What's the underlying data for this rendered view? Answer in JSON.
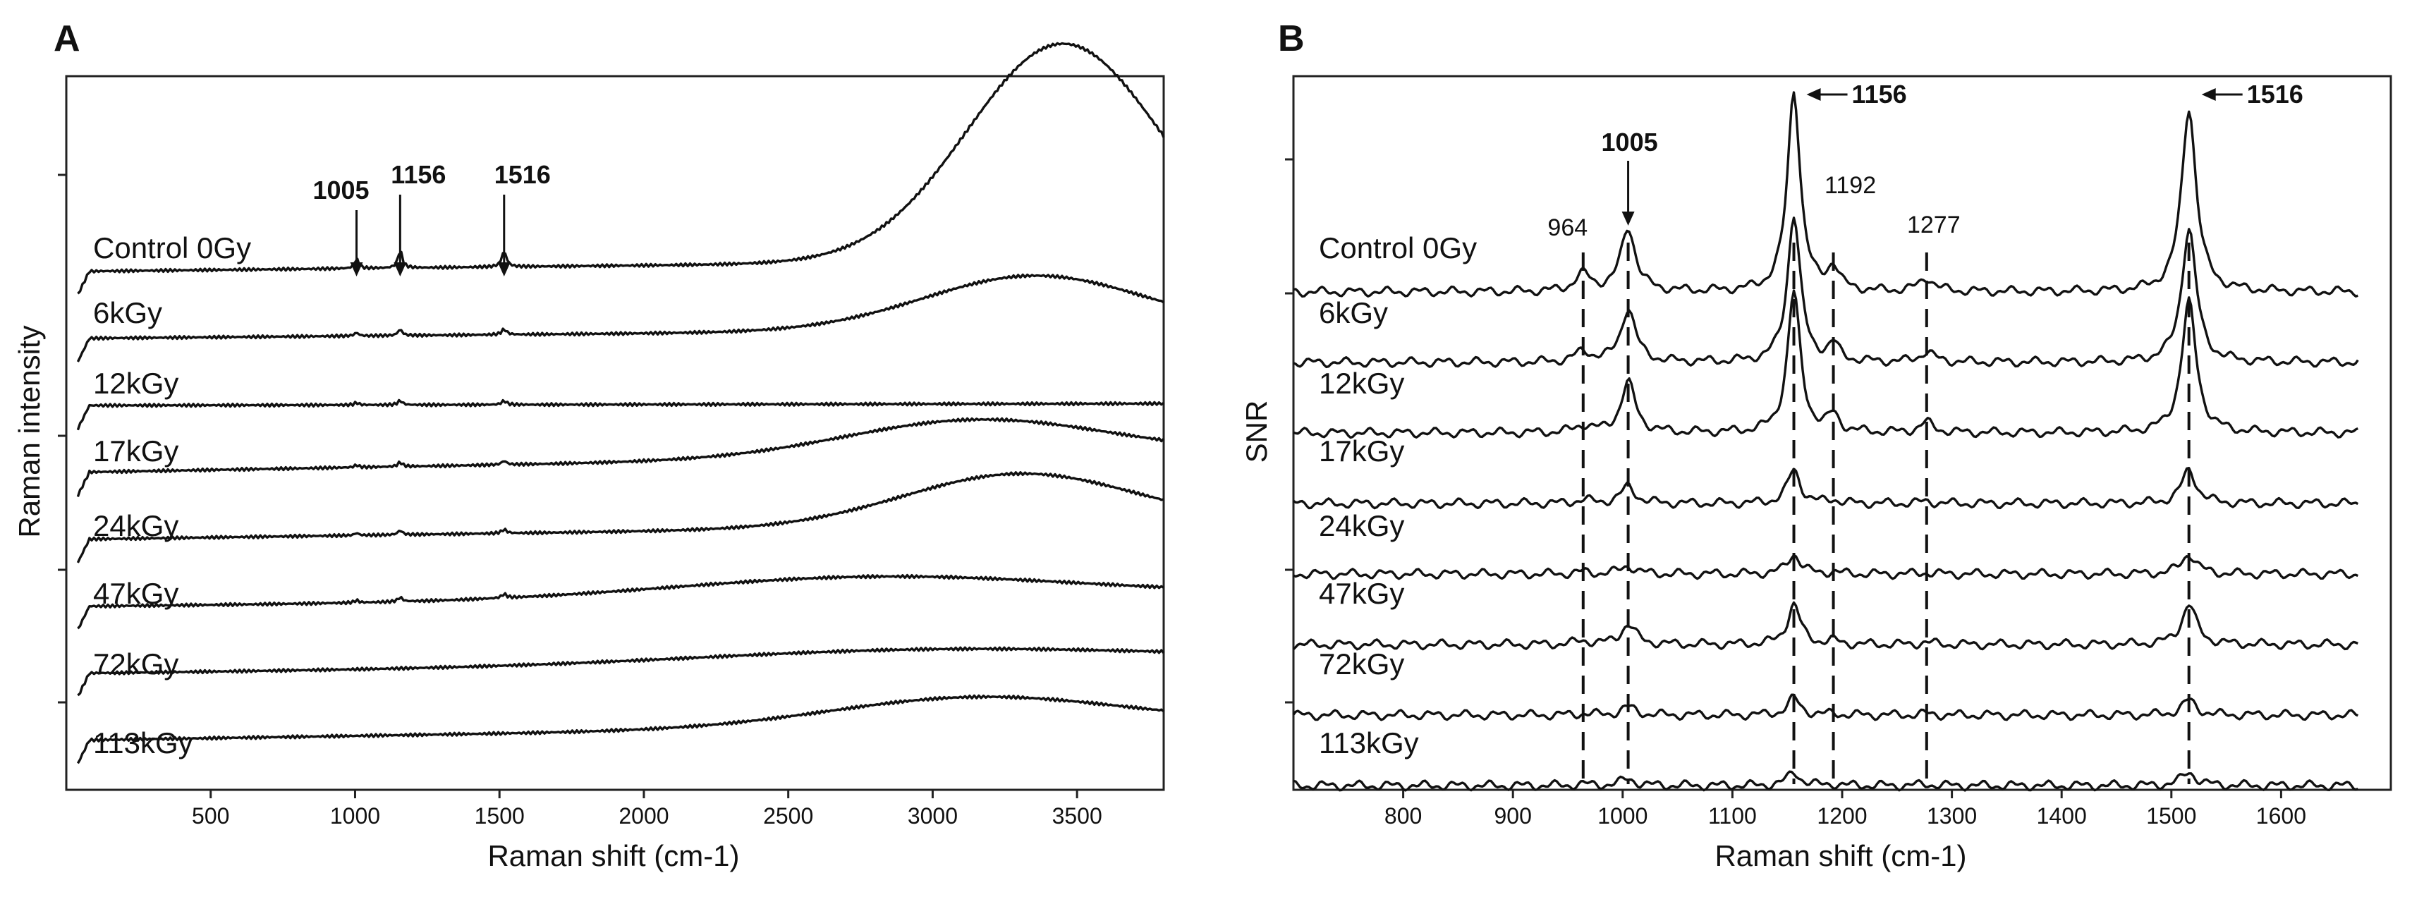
{
  "chart_data": [
    {
      "panel": "A",
      "type": "line",
      "xlabel": "Raman shift (cm-1)",
      "ylabel": "Raman intensity",
      "xlim": [
        0,
        3800
      ],
      "x_ticks": [
        500,
        1000,
        1500,
        2000,
        2500,
        3000,
        3500
      ],
      "x_tick_labels": [
        "500",
        "1000",
        "1500",
        "2000",
        "2500",
        "3000",
        "3500"
      ],
      "series": [
        {
          "name": "Control 0Gy",
          "baseline": 0.0,
          "slope": 0.3,
          "broad_amp": 5.6,
          "broad_center": 3450,
          "broad_width": 330,
          "peak_amp": 1.0
        },
        {
          "name": "6kGy",
          "baseline": -1.0,
          "slope": 0.25,
          "broad_amp": 1.4,
          "broad_center": 3350,
          "broad_width": 380,
          "peak_amp": 0.35
        },
        {
          "name": "12kGy",
          "baseline": -2.0,
          "slope": 0.05,
          "broad_amp": 0.0,
          "broad_center": 3300,
          "broad_width": 400,
          "peak_amp": 0.25
        },
        {
          "name": "17kGy",
          "baseline": -3.0,
          "slope": 0.5,
          "broad_amp": 0.95,
          "broad_center": 3150,
          "broad_width": 450,
          "peak_amp": 0.25
        },
        {
          "name": "24kGy",
          "baseline": -4.0,
          "slope": 0.4,
          "broad_amp": 1.35,
          "broad_center": 3300,
          "broad_width": 400,
          "peak_amp": 0.25
        },
        {
          "name": "47kGy",
          "baseline": -5.0,
          "slope": 0.3,
          "broad_amp": 0.55,
          "broad_center": 2800,
          "broad_width": 700,
          "peak_amp": 0.25
        },
        {
          "name": "72kGy",
          "baseline": -6.0,
          "slope": 0.35,
          "broad_amp": 0.35,
          "broad_center": 3000,
          "broad_width": 800,
          "peak_amp": 0.0
        },
        {
          "name": "113kGy",
          "baseline": -7.0,
          "slope": 0.45,
          "broad_amp": 0.75,
          "broad_center": 3150,
          "broad_width": 500,
          "peak_amp": 0.0
        }
      ],
      "annotations": [
        {
          "label": "1005",
          "x": 1005
        },
        {
          "label": "1156",
          "x": 1156
        },
        {
          "label": "1516",
          "x": 1516
        }
      ]
    },
    {
      "panel": "B",
      "type": "line",
      "xlabel": "Raman shift (cm-1)",
      "ylabel": "SNR",
      "xlim": [
        700,
        1700
      ],
      "x_ticks": [
        800,
        900,
        1000,
        1100,
        1200,
        1300,
        1400,
        1500,
        1600
      ],
      "x_tick_labels": [
        "800",
        "900",
        "1000",
        "1100",
        "1200",
        "1300",
        "1400",
        "1500",
        "1600"
      ],
      "series": [
        {
          "name": "Control 0Gy",
          "baseline": 0.0,
          "p964": 0.25,
          "p1005": 0.95,
          "p1156": 3.0,
          "p1192": 0.35,
          "p1277": 0.2,
          "p1516": 2.75
        },
        {
          "name": "6kGy",
          "baseline": -1.0,
          "p964": 0.15,
          "p1005": 0.8,
          "p1156": 2.2,
          "p1192": 0.25,
          "p1277": 0.15,
          "p1516": 2.0
        },
        {
          "name": "12kGy",
          "baseline": -2.0,
          "p964": 0.1,
          "p1005": 0.75,
          "p1156": 2.1,
          "p1192": 0.25,
          "p1277": 0.15,
          "p1516": 1.95
        },
        {
          "name": "17kGy",
          "baseline": -3.0,
          "p964": 0.05,
          "p1005": 0.25,
          "p1156": 0.5,
          "p1192": 0.05,
          "p1277": 0.03,
          "p1516": 0.5
        },
        {
          "name": "24kGy",
          "baseline": -4.0,
          "p964": 0.03,
          "p1005": 0.12,
          "p1156": 0.3,
          "p1192": 0.03,
          "p1277": 0.02,
          "p1516": 0.3
        },
        {
          "name": "47kGy",
          "baseline": -5.0,
          "p964": 0.05,
          "p1005": 0.3,
          "p1156": 0.6,
          "p1192": 0.05,
          "p1277": 0.03,
          "p1516": 0.6
        },
        {
          "name": "72kGy",
          "baseline": -6.0,
          "p964": 0.02,
          "p1005": 0.12,
          "p1156": 0.25,
          "p1192": 0.02,
          "p1277": 0.02,
          "p1516": 0.22
        },
        {
          "name": "113kGy",
          "baseline": -7.0,
          "p964": 0.02,
          "p1005": 0.1,
          "p1156": 0.2,
          "p1192": 0.02,
          "p1277": 0.02,
          "p1516": 0.2
        }
      ],
      "dashed_lines": [
        964,
        1005,
        1156,
        1192,
        1277,
        1516
      ],
      "annotations": [
        {
          "label": "964",
          "x": 964,
          "bold": false
        },
        {
          "label": "1005",
          "x": 1005,
          "bold": true
        },
        {
          "label": "1156",
          "x": 1156,
          "bold": true
        },
        {
          "label": "1192",
          "x": 1192,
          "bold": false
        },
        {
          "label": "1277",
          "x": 1277,
          "bold": false
        },
        {
          "label": "1516",
          "x": 1516,
          "bold": true
        }
      ]
    }
  ],
  "panels": {
    "a": {
      "label": "A",
      "xlabel": "Raman shift (cm-1)",
      "ylabel": "Raman intensity"
    },
    "b": {
      "label": "B",
      "xlabel": "Raman shift (cm-1)",
      "ylabel": "SNR"
    }
  }
}
